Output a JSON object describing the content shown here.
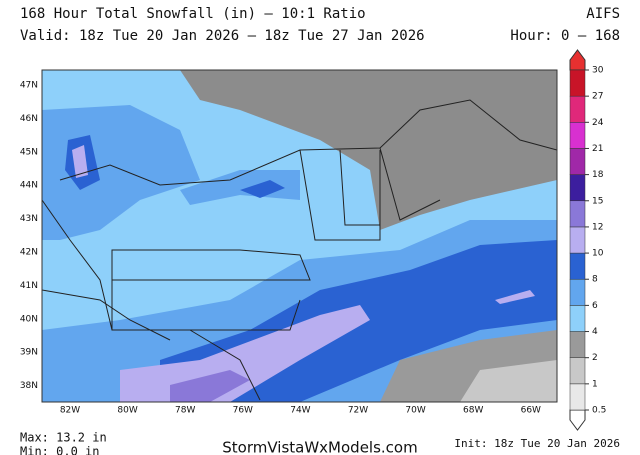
{
  "header": {
    "title": "168 Hour Total Snowfall (in) — 10:1 Ratio",
    "model": "AIFS",
    "valid": "Valid: 18z Tue 20 Jan 2026 — 18z Tue 27 Jan 2026",
    "hours": "Hour: 0 — 168"
  },
  "map": {
    "lat_labels": [
      "47N",
      "46N",
      "45N",
      "44N",
      "43N",
      "42N",
      "41N",
      "40N",
      "39N",
      "38N"
    ],
    "lon_labels": [
      "82W",
      "80W",
      "78W",
      "76W",
      "74W",
      "72W",
      "70W",
      "68W",
      "66W"
    ]
  },
  "colorbar": {
    "levels": [
      0.5,
      1,
      2,
      4,
      6,
      8,
      10,
      12,
      15,
      18,
      21,
      24,
      27,
      30
    ],
    "colors": [
      "#e8e8e8",
      "#c8c8c8",
      "#9a9a9a",
      "#8ed0fa",
      "#62a6ee",
      "#2a62d2",
      "#b8aef0",
      "#8a78d8",
      "#3c1e9e",
      "#a028a8",
      "#d830d0",
      "#e0287a",
      "#c81428"
    ]
  },
  "footer": {
    "max": "Max: 13.2 in",
    "min": "Min: 0.0 in",
    "site": "StormVistaWxModels.com",
    "init": "Init: 18z Tue 20 Jan 2026"
  }
}
